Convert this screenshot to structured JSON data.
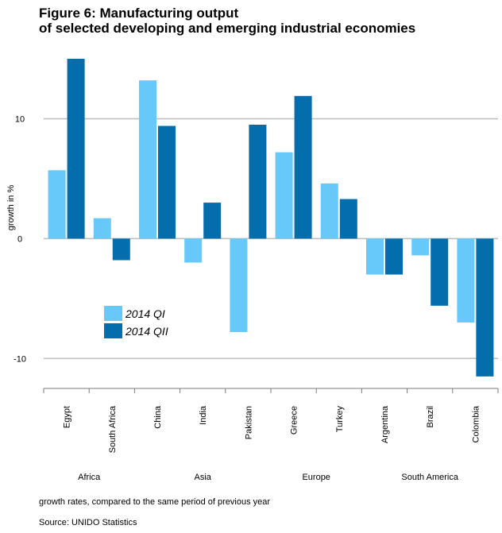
{
  "title_lines": [
    "Figure 6: Manufacturing output",
    "of selected developing and emerging industrial economies"
  ],
  "note": "growth rates, compared to the same period of previous year",
  "source": "Source: UNIDO Statistics",
  "colors": {
    "q1": "#66c9fa",
    "q2": "#046ead",
    "grid": "#bdbdbd",
    "axis": "#7a7a7a"
  },
  "chart_data": {
    "type": "bar",
    "title": "Figure 6: Manufacturing output of selected developing and emerging industrial economies",
    "ylabel": "growth in %",
    "xlabel": "",
    "ylim": [
      -12.5,
      15
    ],
    "yticks": [
      -10,
      0,
      10
    ],
    "grid": true,
    "legend_position": "center-left",
    "categories": [
      "Egypt",
      "South Africa",
      "China",
      "India",
      "Pakistan",
      "Greece",
      "Turkey",
      "Argentina",
      "Brazil",
      "Colombia"
    ],
    "groups": [
      {
        "label": "Africa",
        "categories": [
          "Egypt",
          "South Africa"
        ]
      },
      {
        "label": "Asia",
        "categories": [
          "China",
          "India",
          "Pakistan"
        ]
      },
      {
        "label": "Europe",
        "categories": [
          "Greece",
          "Turkey"
        ]
      },
      {
        "label": "South America",
        "categories": [
          "Argentina",
          "Brazil",
          "Colombia"
        ]
      }
    ],
    "series": [
      {
        "name": "2014 QI",
        "values": [
          5.7,
          1.7,
          13.2,
          -2.0,
          -7.8,
          7.2,
          4.6,
          -3.0,
          -1.4,
          -7.0
        ]
      },
      {
        "name": "2014 QII",
        "values": [
          15.0,
          -1.8,
          9.4,
          3.0,
          9.5,
          11.9,
          3.3,
          -3.0,
          -5.6,
          -11.5
        ]
      }
    ]
  }
}
